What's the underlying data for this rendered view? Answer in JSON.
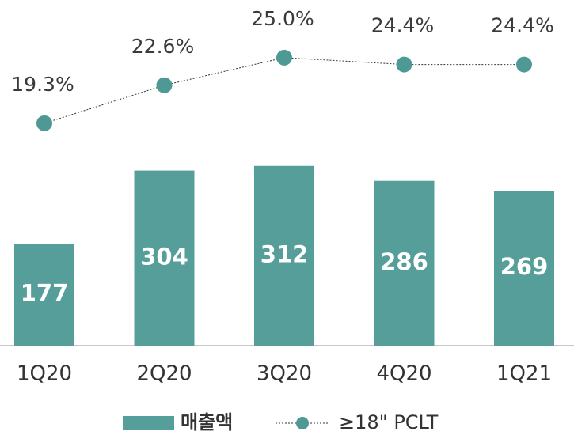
{
  "chart_data": {
    "type": "bar",
    "categories": [
      "1Q20",
      "2Q20",
      "3Q20",
      "4Q20",
      "1Q21"
    ],
    "series": [
      {
        "name": "매출액",
        "type": "bar",
        "color": "#569e9a",
        "values": [
          177,
          304,
          312,
          286,
          269
        ]
      },
      {
        "name": "≥18\" PCLT",
        "type": "line",
        "axis": "y2",
        "color": "#4f9994",
        "values": [
          19.3,
          22.6,
          25.0,
          24.4,
          24.4
        ],
        "value_labels": [
          "19.3%",
          "22.6%",
          "25.0%",
          "24.4%",
          "24.4%"
        ]
      }
    ],
    "ylim": [
      0,
      600
    ],
    "y2lim": [
      0,
      30
    ],
    "grid": false,
    "legend": "bottom"
  }
}
